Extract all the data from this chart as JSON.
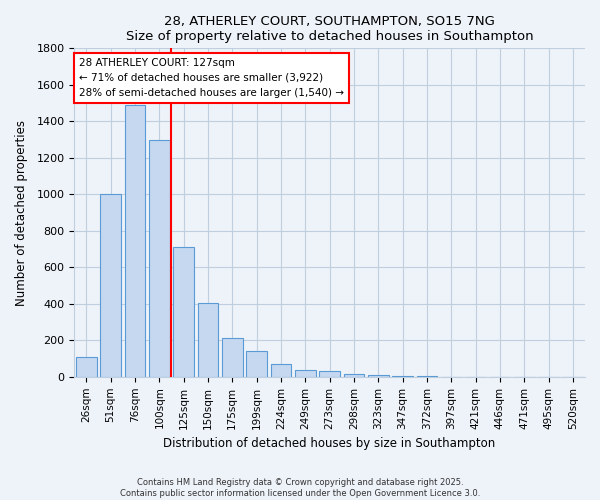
{
  "title": "28, ATHERLEY COURT, SOUTHAMPTON, SO15 7NG",
  "subtitle": "Size of property relative to detached houses in Southampton",
  "xlabel": "Distribution of detached houses by size in Southampton",
  "ylabel": "Number of detached properties",
  "categories": [
    "26sqm",
    "51sqm",
    "76sqm",
    "100sqm",
    "125sqm",
    "150sqm",
    "175sqm",
    "199sqm",
    "224sqm",
    "249sqm",
    "273sqm",
    "298sqm",
    "323sqm",
    "347sqm",
    "372sqm",
    "397sqm",
    "421sqm",
    "446sqm",
    "471sqm",
    "495sqm",
    "520sqm"
  ],
  "values": [
    110,
    1000,
    1490,
    1300,
    710,
    405,
    210,
    140,
    70,
    40,
    30,
    15,
    8,
    3,
    2,
    1,
    0,
    0,
    0,
    0,
    0
  ],
  "bar_color": "#c5d8f0",
  "bar_edgecolor": "#5b9bd5",
  "red_line_x": 4.0,
  "annotation_line1": "28 ATHERLEY COURT: 127sqm",
  "annotation_line2": "← 71% of detached houses are smaller (3,922)",
  "annotation_line3": "28% of semi-detached houses are larger (1,540) →",
  "ylim": [
    0,
    1800
  ],
  "yticks": [
    0,
    200,
    400,
    600,
    800,
    1000,
    1200,
    1400,
    1600,
    1800
  ],
  "footnote1": "Contains HM Land Registry data © Crown copyright and database right 2025.",
  "footnote2": "Contains public sector information licensed under the Open Government Licence 3.0.",
  "background_color": "#eef2f9",
  "plot_background": "#eef2f9",
  "grid_color": "#c0cfe0"
}
